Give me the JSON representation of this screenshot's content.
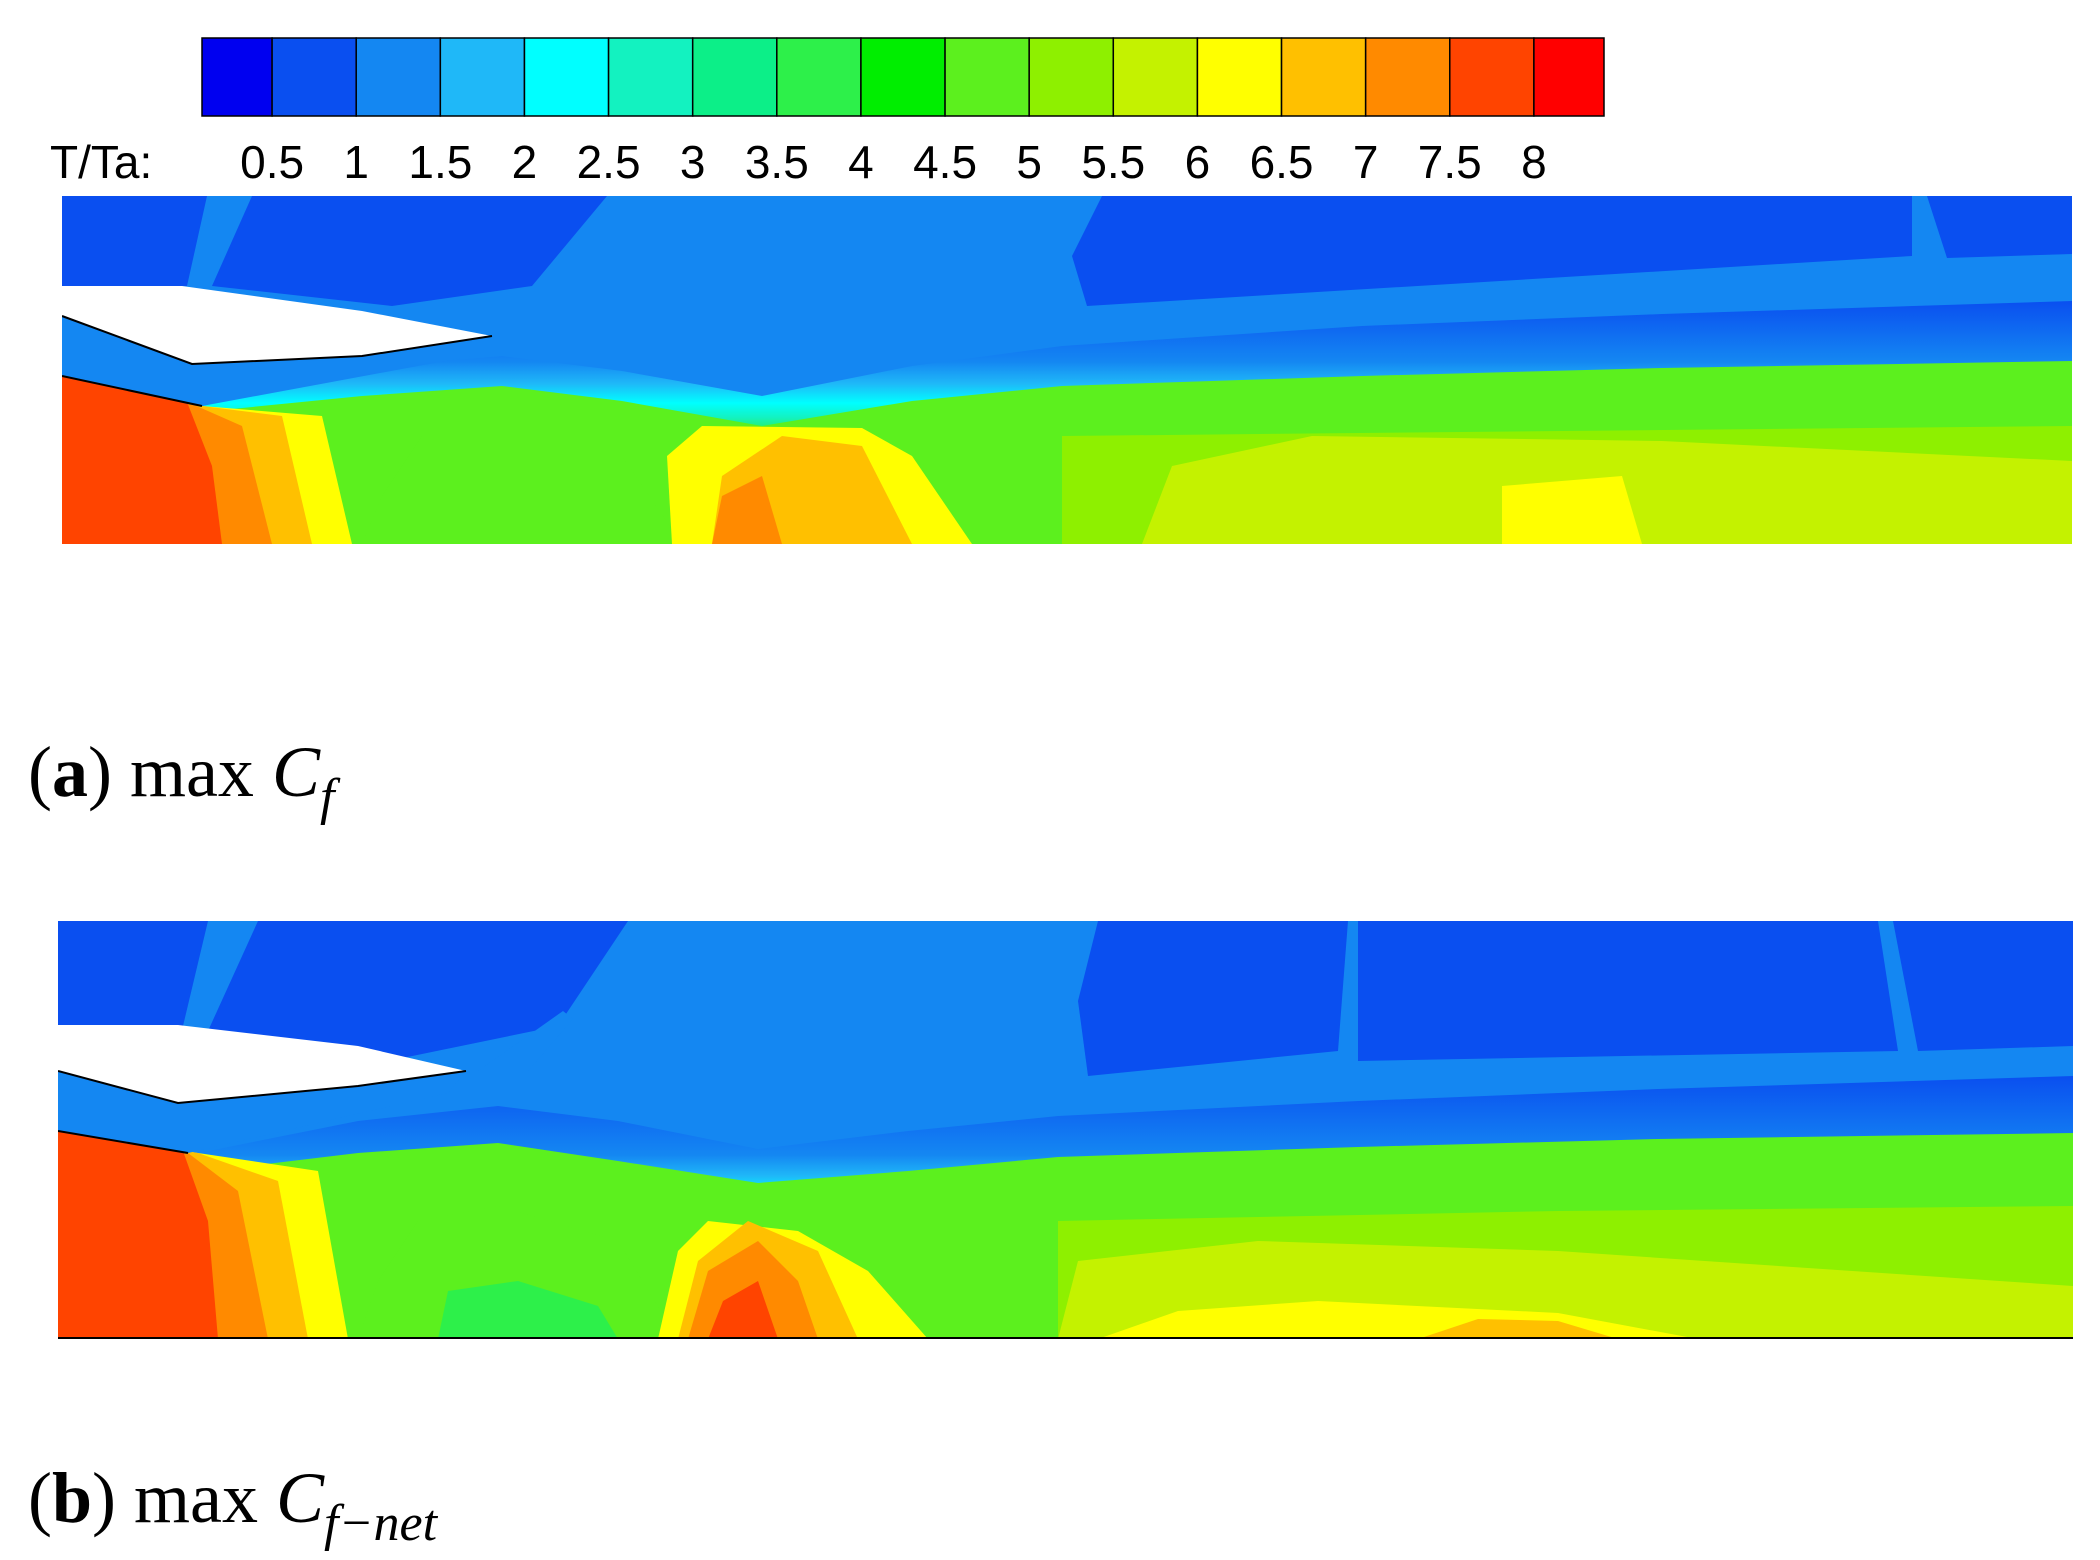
{
  "colorbar": {
    "label": "T/Ta:",
    "ticks": [
      "0.5",
      "1",
      "1.5",
      "2",
      "2.5",
      "3",
      "3.5",
      "4",
      "4.5",
      "5",
      "5.5",
      "6",
      "6.5",
      "7",
      "7.5",
      "8"
    ],
    "colors": [
      "#0000f0",
      "#0a4ff0",
      "#1487f2",
      "#1fb8f8",
      "#00ffff",
      "#13f2c0",
      "#0cef88",
      "#2df04a",
      "#00ee00",
      "#5cf01e",
      "#8ef000",
      "#c4f200",
      "#ffff00",
      "#ffc000",
      "#ff8a00",
      "#ff4400",
      "#ff0000"
    ]
  },
  "panels": [
    {
      "label": "(a)",
      "text": "max",
      "symbol": "C",
      "subscript": "f"
    },
    {
      "label": "(b)",
      "text": "max",
      "symbol": "C",
      "subscript": "f−net"
    }
  ]
}
